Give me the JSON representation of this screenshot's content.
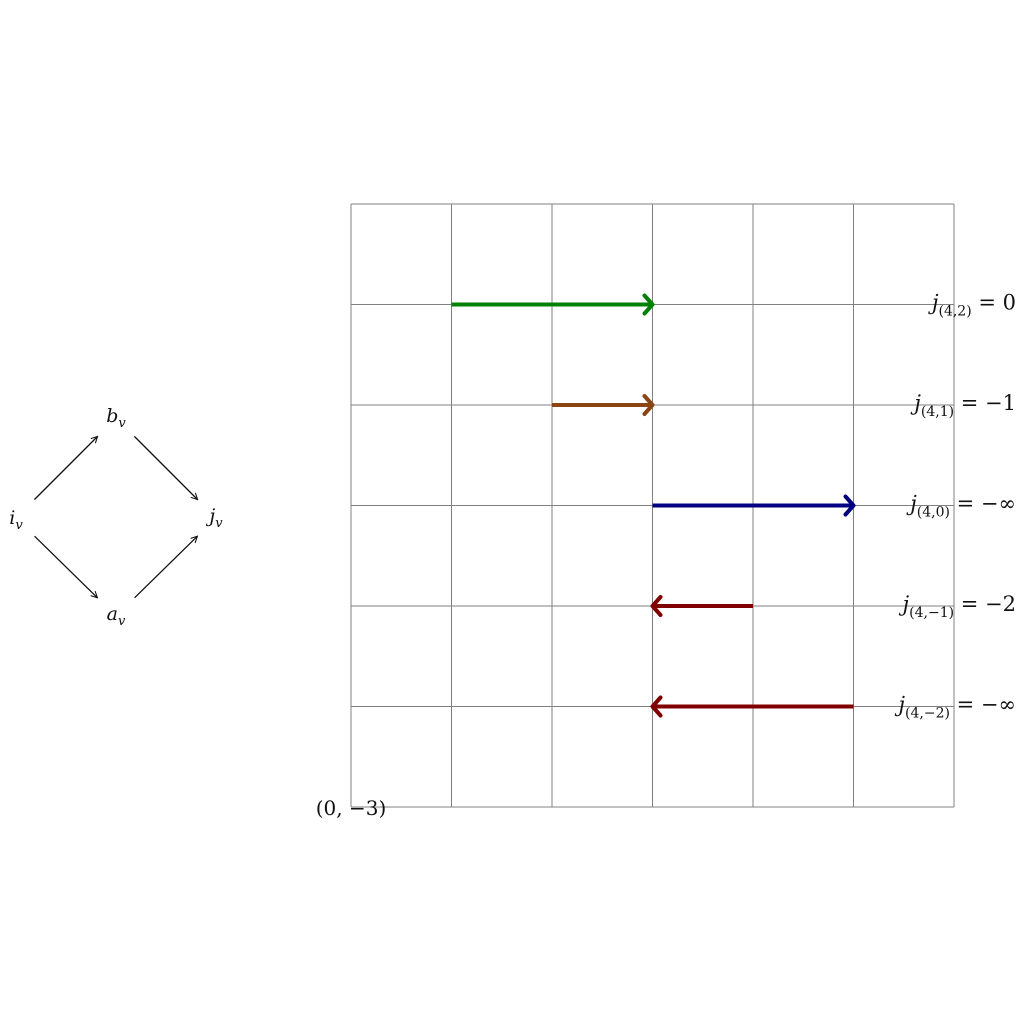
{
  "diamond": {
    "nodes": [
      {
        "id": "i",
        "base": "i",
        "sub": "v"
      },
      {
        "id": "b",
        "base": "b",
        "sub": "v"
      },
      {
        "id": "a",
        "base": "a",
        "sub": "v"
      },
      {
        "id": "j",
        "base": "j",
        "sub": "v"
      }
    ],
    "edges": [
      {
        "from": "i",
        "to": "b"
      },
      {
        "from": "i",
        "to": "a"
      },
      {
        "from": "b",
        "to": "j"
      },
      {
        "from": "a",
        "to": "j"
      }
    ]
  },
  "grid": {
    "columns": 6,
    "rows": 6,
    "line_color": "#808080",
    "origin_label": "(0, −3)"
  },
  "arrows": [
    {
      "row": 1,
      "from_col": 1,
      "to_col": 3,
      "color": "#008000",
      "label_sub": "(4,2)",
      "label_value": "= 0"
    },
    {
      "row": 2,
      "from_col": 2,
      "to_col": 3,
      "color": "#8B4513",
      "label_sub": "(4,1)",
      "label_value": "= −1"
    },
    {
      "row": 3,
      "from_col": 3,
      "to_col": 5,
      "color": "#000080",
      "label_sub": "(4,0)",
      "label_value": "= −∞"
    },
    {
      "row": 4,
      "from_col": 4,
      "to_col": 3,
      "color": "#800000",
      "label_sub": "(4,−1)",
      "label_value": "= −2"
    },
    {
      "row": 5,
      "from_col": 5,
      "to_col": 3,
      "color": "#800000",
      "label_sub": "(4,−2)",
      "label_value": "= −∞"
    }
  ]
}
